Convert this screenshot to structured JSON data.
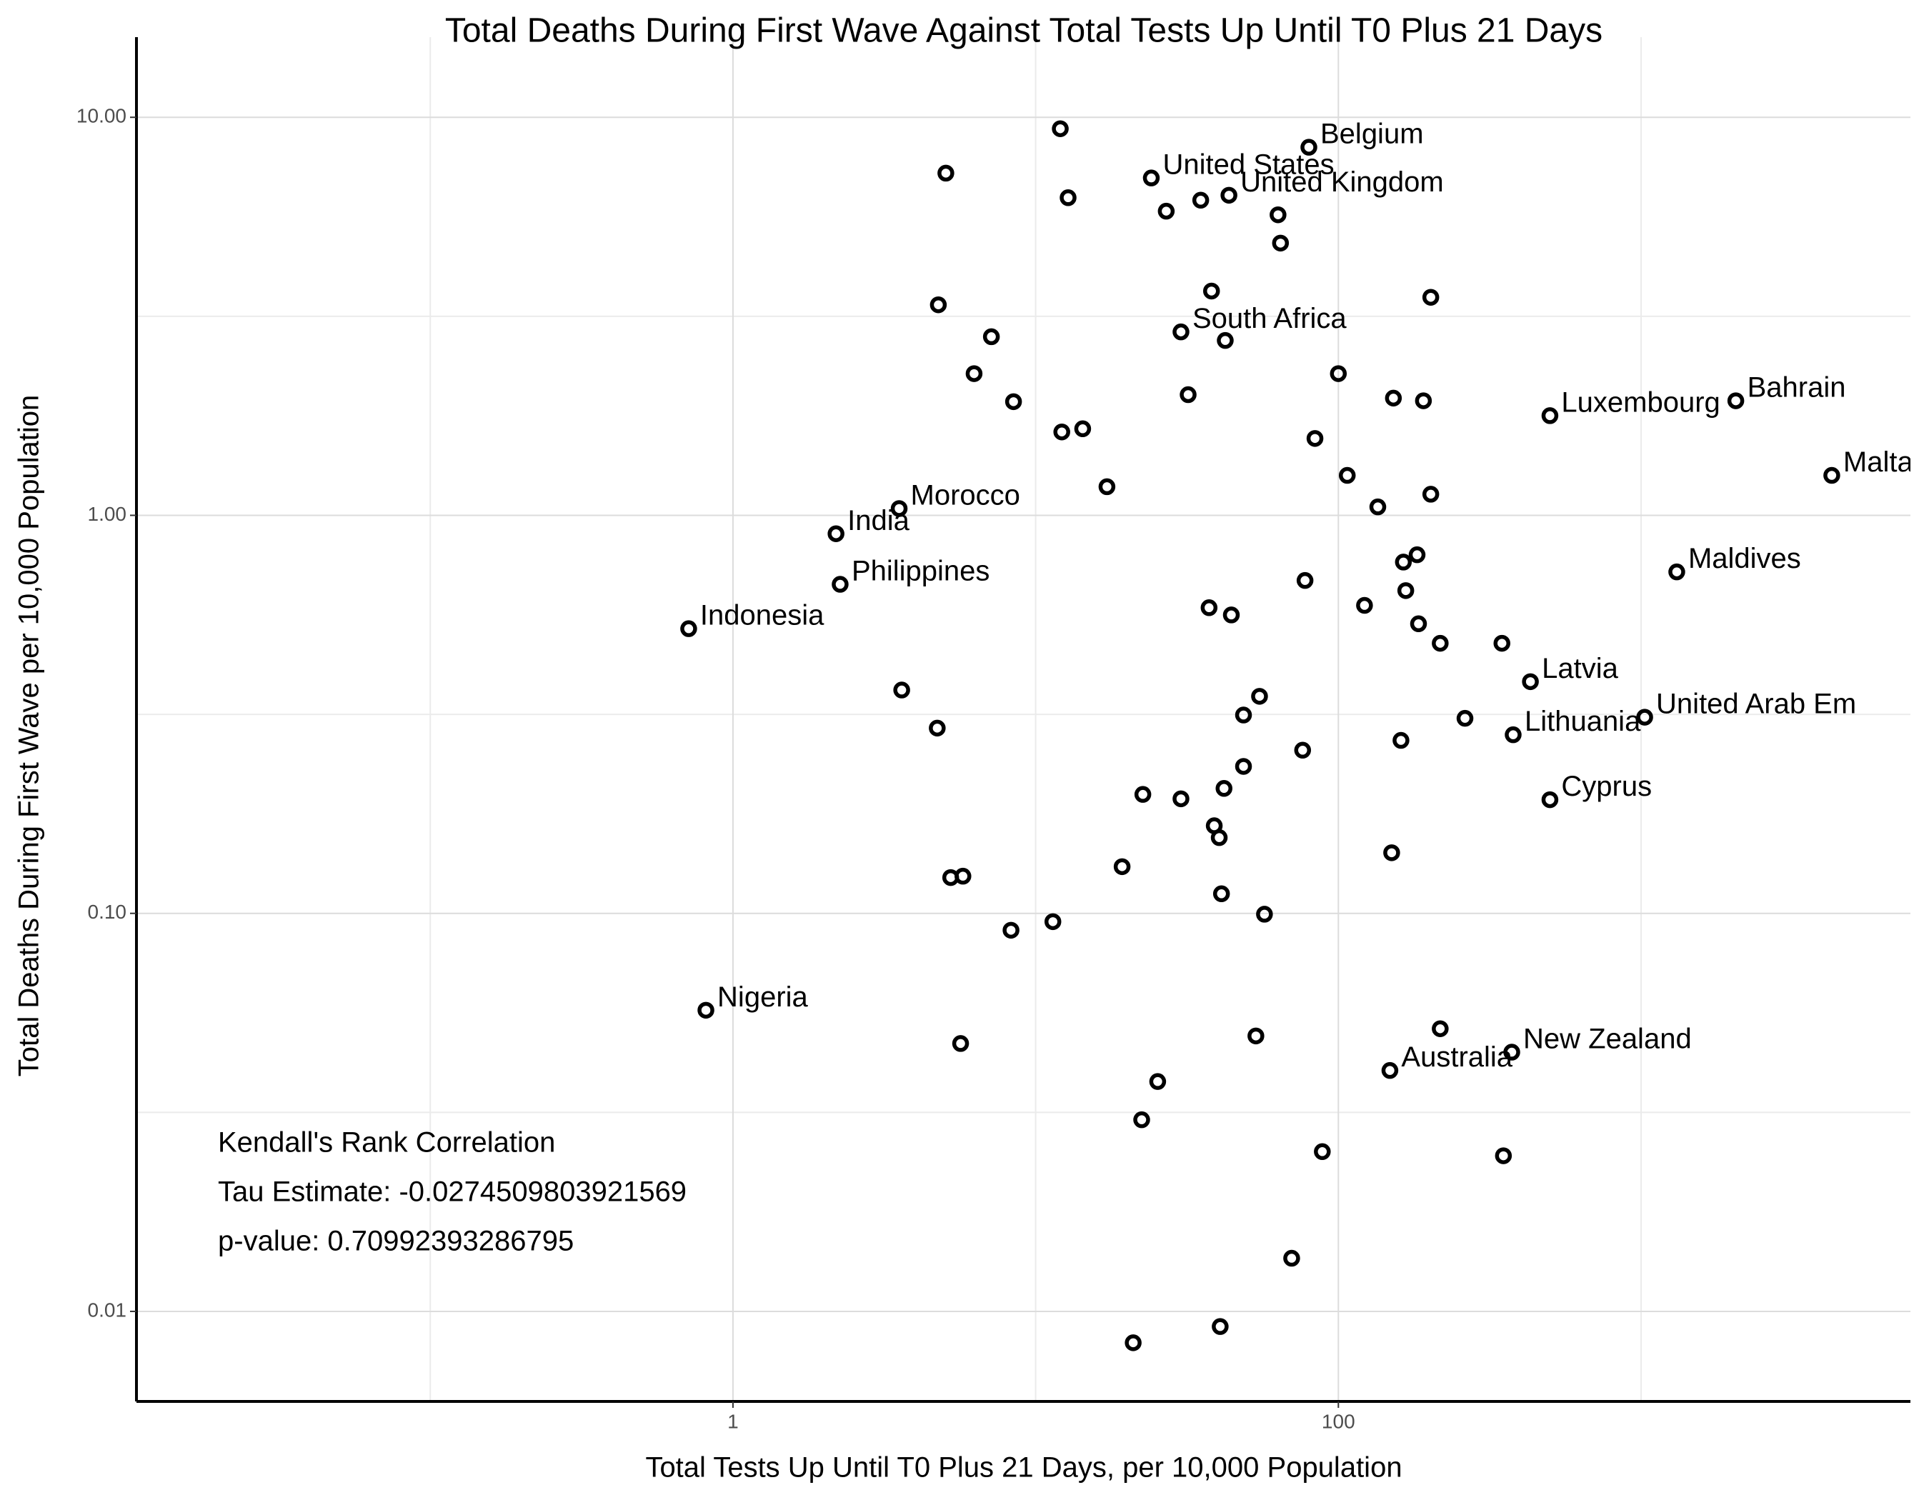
{
  "chart_data": {
    "type": "scatter",
    "title": "Total Deaths During First Wave Against Total Tests Up Until T0 Plus 21 Days",
    "x_label": "Total Tests Up Until T0 Plus 21 Days, per 10,000 Population",
    "y_label": "Total Deaths During First Wave per 10,000 Population",
    "annotation": [
      "Kendall's Rank Correlation",
      "Tau Estimate: -0.0274509803921569",
      "p-value: 0.70992393286795"
    ],
    "x_log": true,
    "y_log": true,
    "grid": true,
    "color": "#000000",
    "xlim": [
      0.0107,
      7760
    ],
    "ylim": [
      0.00594,
      15.9
    ],
    "xticks": [
      1,
      100
    ],
    "yticks": [
      {
        "value": 0.01,
        "label": "0.01"
      },
      {
        "value": 0.1,
        "label": "0.10"
      },
      {
        "value": 1,
        "label": "1.00"
      },
      {
        "value": 10,
        "label": "10.00"
      }
    ],
    "x": [
      79.9,
      24.1,
      43.5,
      30.2,
      500,
      2056,
      4266,
      3.54,
      2.19,
      2.26,
      0.714,
      1312,
      431,
      1028,
      378,
      500,
      0.814,
      374,
      148,
      12.06,
      5.05,
      12.8,
      27.0,
      35.1,
      63.2,
      64.4,
      38.1,
      202,
      4.77,
      7.14,
      42.3,
      6.26,
      100,
      31.9,
      8.45,
      152,
      191,
      12.2,
      14.3,
      83.7,
      17.2,
      107,
      202,
      135,
      182,
      164,
      77.6,
      167,
      122,
      37.4,
      44.3,
      184,
      217,
      347,
      3.61,
      54.9,
      48.6,
      262,
      4.73,
      161,
      76.2,
      48.6,
      41.9,
      22.6,
      30.2,
      38.9,
      40.4,
      150,
      19.3,
      5.24,
      5.75,
      41.1,
      57.0,
      11.4,
      8.29,
      217,
      53.4,
      5.65,
      25.3,
      22.4,
      88.5,
      351,
      70.1,
      40.7,
      21.0
    ],
    "values": [
      8.41,
      7.04,
      6.37,
      2.89,
      1.78,
      1.94,
      1.26,
      1.04,
      0.899,
      0.671,
      0.519,
      0.721,
      0.382,
      0.311,
      0.281,
      0.193,
      0.0571,
      0.0448,
      0.0403,
      9.36,
      7.24,
      6.28,
      5.81,
      6.19,
      5.69,
      4.83,
      3.66,
      3.53,
      3.38,
      2.81,
      2.75,
      2.27,
      2.27,
      2.01,
      1.93,
      1.97,
      1.94,
      1.62,
      1.65,
      1.56,
      1.18,
      1.26,
      1.13,
      1.05,
      0.796,
      0.763,
      0.686,
      0.647,
      0.594,
      0.586,
      0.562,
      0.534,
      0.477,
      0.477,
      0.364,
      0.351,
      0.315,
      0.309,
      0.292,
      0.272,
      0.257,
      0.234,
      0.206,
      0.199,
      0.194,
      0.166,
      0.155,
      0.142,
      0.131,
      0.123,
      0.124,
      0.112,
      0.0995,
      0.0953,
      0.0907,
      0.0513,
      0.0492,
      0.0471,
      0.0378,
      0.0303,
      0.0252,
      0.0246,
      0.0136,
      0.00916,
      0.00834
    ],
    "labels": [
      "Belgium",
      "United States",
      "United Kingdom",
      "South Africa",
      "Luxembourg",
      "Bahrain",
      "Malta",
      "Morocco",
      "India",
      "Philippines",
      "Indonesia",
      "Maldives",
      "Latvia",
      "United Arab Em",
      "Lithuania",
      "Cyprus",
      "Nigeria",
      "New Zealand",
      "Australia",
      null,
      null,
      null,
      null,
      null,
      null,
      null,
      null,
      null,
      null,
      null,
      null,
      null,
      null,
      null,
      null,
      null,
      null,
      null,
      null,
      null,
      null,
      null,
      null,
      null,
      null,
      null,
      null,
      null,
      null,
      null,
      null,
      null,
      null,
      null,
      null,
      null,
      null,
      null,
      null,
      null,
      null,
      null,
      null,
      null,
      null,
      null,
      null,
      null,
      null,
      null,
      null,
      null,
      null,
      null,
      null,
      null,
      null,
      null,
      null,
      null,
      null,
      null,
      null,
      null,
      null
    ]
  }
}
